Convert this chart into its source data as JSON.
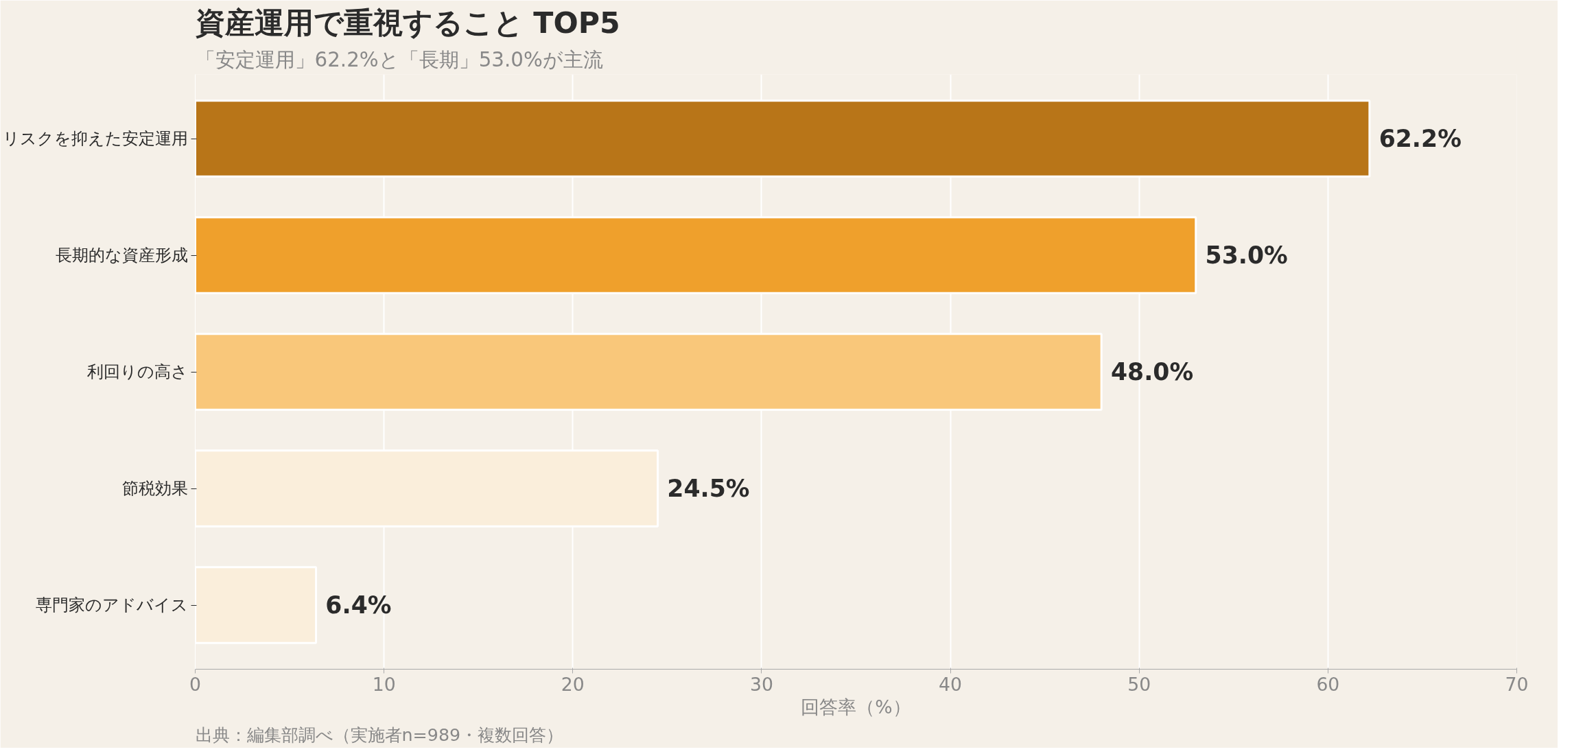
{
  "chart_data": {
    "type": "bar",
    "orientation": "horizontal",
    "title": "資産運用で重視すること TOP5",
    "subtitle": "「安定運用」62.2%と「長期」53.0%が主流",
    "xlabel": "回答率（%）",
    "categories": [
      "リスクを抑えた安定運用",
      "長期的な資産形成",
      "利回りの高さ",
      "節税効果",
      "専門家のアドバイス"
    ],
    "values": [
      62.2,
      53.0,
      48.0,
      24.5,
      6.4
    ],
    "colors": [
      "#b87518",
      "#efa02c",
      "#f9c77a",
      "#faeedb",
      "#faeedb"
    ],
    "value_labels": [
      "62.2%",
      "53.0%",
      "48.0%",
      "24.5%",
      "6.4%"
    ],
    "xlim": [
      0,
      70
    ],
    "xticks": [
      0,
      10,
      20,
      30,
      40,
      50,
      60,
      70
    ],
    "grid": "x",
    "annotations": [
      "出典：編集部調べ（実施者n=989・複数回答）"
    ]
  }
}
